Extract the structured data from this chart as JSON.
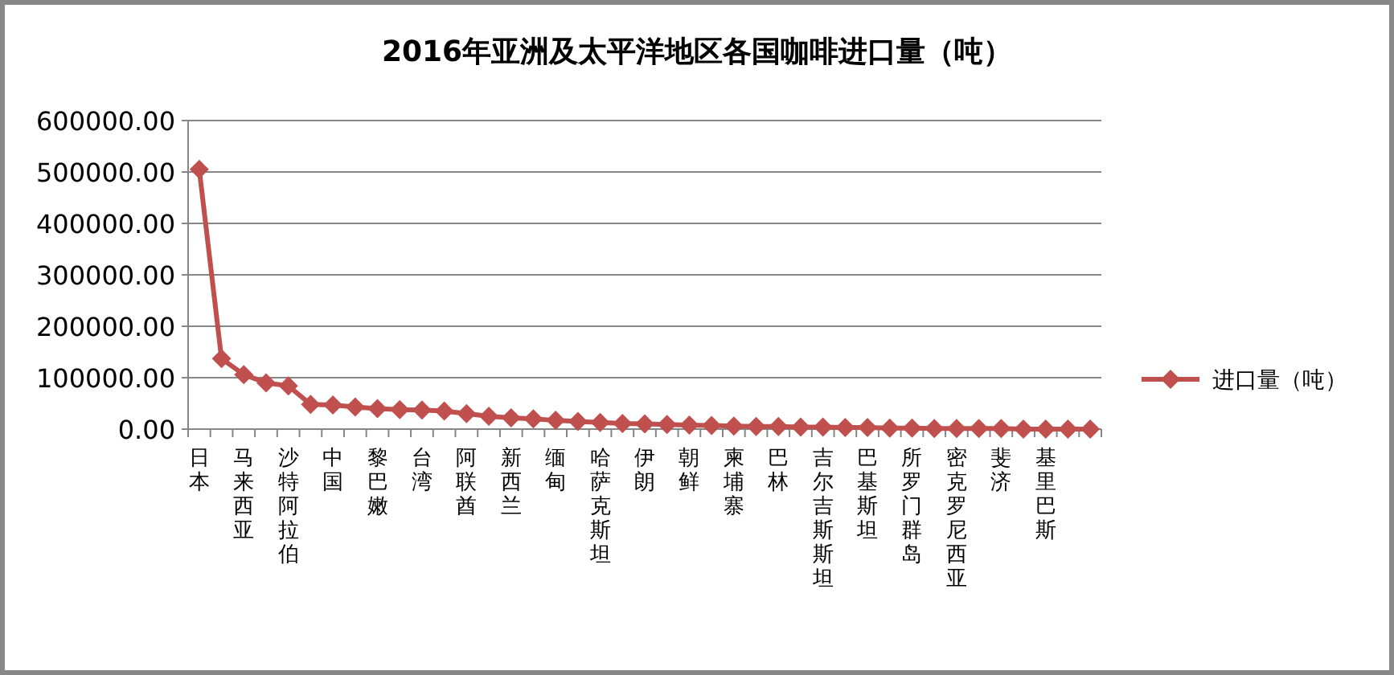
{
  "chart_data": {
    "type": "line",
    "title": "2016年亚洲及太平洋地区各国咖啡进口量（吨）",
    "categories": [
      "日本",
      null,
      "马来西亚",
      null,
      "沙特阿拉伯",
      null,
      "中国",
      null,
      "黎巴嫩",
      null,
      "台湾",
      null,
      "阿联酋",
      null,
      "新西兰",
      null,
      "缅甸",
      null,
      "哈萨克斯坦",
      null,
      "伊朗",
      null,
      "朝鲜",
      null,
      "柬埔寨",
      null,
      "巴林",
      null,
      "吉尔吉斯斯坦",
      null,
      "巴基斯坦",
      null,
      "所罗门群岛",
      null,
      "密克罗尼西亚",
      null,
      "斐济",
      null,
      "基里巴斯",
      null,
      null
    ],
    "series": [
      {
        "name": "进口量（吨）",
        "color": "#c0504d",
        "values": [
          505000,
          137000,
          106000,
          90000,
          84000,
          48000,
          47000,
          43000,
          40000,
          38000,
          37000,
          35000,
          30000,
          25000,
          22000,
          20000,
          17000,
          15000,
          13000,
          11000,
          10000,
          9000,
          8000,
          7000,
          6000,
          5000,
          5000,
          4000,
          4000,
          3000,
          3000,
          2000,
          2000,
          1000,
          1000,
          1000,
          1000,
          0,
          0,
          0,
          0
        ]
      }
    ],
    "ylim": [
      0,
      600000
    ],
    "yticks": [
      {
        "value": 0,
        "label": "0.00"
      },
      {
        "value": 100000,
        "label": "100000.00"
      },
      {
        "value": 200000,
        "label": "200000.00"
      },
      {
        "value": 300000,
        "label": "300000.00"
      },
      {
        "value": 400000,
        "label": "400000.00"
      },
      {
        "value": 500000,
        "label": "500000.00"
      },
      {
        "value": 600000,
        "label": "600000.00"
      }
    ],
    "grid": "y",
    "legend": "right",
    "marker": "diamond",
    "line_style": "solid"
  }
}
